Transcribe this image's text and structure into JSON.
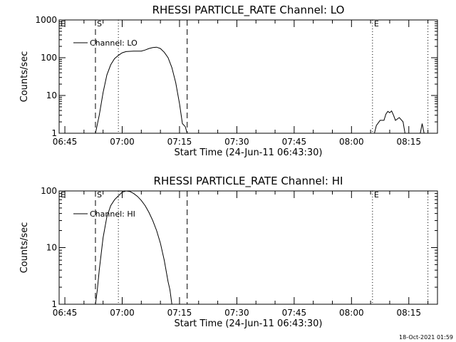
{
  "chart_data": [
    {
      "type": "line",
      "title": "RHESSI PARTICLE_RATE Channel: LO",
      "xlabel": "Start Time (24-Jun-11 06:43:30)",
      "ylabel": "Counts/sec",
      "y_scale": "log",
      "ylim": [
        1,
        1000
      ],
      "y_ticks": [
        {
          "value": 1,
          "label": "1"
        },
        {
          "value": 10,
          "label": "10"
        },
        {
          "value": 100,
          "label": "100"
        },
        {
          "value": 1000,
          "label": "1000"
        }
      ],
      "xlim": [
        "06:43:30",
        "08:22:30"
      ],
      "x_ticks": [
        "06:45",
        "07:00",
        "07:15",
        "07:30",
        "07:45",
        "08:00",
        "08:15"
      ],
      "legend": {
        "label": "Channel: LO",
        "placement": "top-left"
      },
      "markers": [
        {
          "label": "E",
          "time": "06:43:30",
          "style": "none"
        },
        {
          "label": "S",
          "time": "06:53:00",
          "style": "dashed"
        },
        {
          "label": "",
          "time": "06:59:00",
          "style": "dotted"
        },
        {
          "label": "",
          "time": "07:17:00",
          "style": "dashed"
        },
        {
          "label": "E",
          "time": "08:05:30",
          "style": "dotted"
        },
        {
          "label": "",
          "time": "08:20:00",
          "style": "dotted"
        }
      ],
      "series": [
        {
          "segments": [
            [
              [
                "06:53:00",
                1
              ],
              [
                "06:54:00",
                3
              ],
              [
                "06:55:00",
                12
              ],
              [
                "06:56:00",
                35
              ],
              [
                "06:57:00",
                65
              ],
              [
                "06:58:00",
                95
              ],
              [
                "06:59:00",
                115
              ],
              [
                "07:00:00",
                135
              ],
              [
                "07:01:00",
                145
              ],
              [
                "07:03:00",
                150
              ],
              [
                "07:05:00",
                150
              ],
              [
                "07:06:00",
                160
              ],
              [
                "07:07:00",
                175
              ],
              [
                "07:08:00",
                185
              ],
              [
                "07:09:00",
                190
              ],
              [
                "07:10:00",
                175
              ],
              [
                "07:11:00",
                140
              ],
              [
                "07:12:00",
                100
              ],
              [
                "07:13:00",
                55
              ],
              [
                "07:14:00",
                22
              ],
              [
                "07:15:00",
                6
              ],
              [
                "07:15:45",
                1.8
              ],
              [
                "07:16:30",
                1.5
              ],
              [
                "07:17:00",
                1
              ]
            ],
            [
              [
                "08:06:00",
                1
              ],
              [
                "08:06:30",
                1.6
              ],
              [
                "08:07:30",
                2.2
              ],
              [
                "08:08:30",
                2.2
              ],
              [
                "08:09:00",
                3.2
              ],
              [
                "08:09:30",
                3.8
              ],
              [
                "08:10:00",
                3.5
              ],
              [
                "08:10:30",
                3.9
              ],
              [
                "08:11:00",
                3.0
              ],
              [
                "08:11:30",
                2.2
              ],
              [
                "08:12:30",
                2.6
              ],
              [
                "08:13:30",
                2.0
              ],
              [
                "08:14:00",
                1
              ]
            ],
            [
              [
                "08:18:00",
                1
              ],
              [
                "08:18:30",
                1.8
              ],
              [
                "08:19:00",
                1
              ]
            ]
          ]
        }
      ]
    },
    {
      "type": "line",
      "title": "RHESSI PARTICLE_RATE Channel: HI",
      "xlabel": "Start Time (24-Jun-11 06:43:30)",
      "ylabel": "Counts/sec",
      "y_scale": "log",
      "ylim": [
        1,
        100
      ],
      "y_ticks": [
        {
          "value": 1,
          "label": "1"
        },
        {
          "value": 10,
          "label": "10"
        },
        {
          "value": 100,
          "label": "100"
        }
      ],
      "xlim": [
        "06:43:30",
        "08:22:30"
      ],
      "x_ticks": [
        "06:45",
        "07:00",
        "07:15",
        "07:30",
        "07:45",
        "08:00",
        "08:15"
      ],
      "legend": {
        "label": "Channel: HI",
        "placement": "top-left"
      },
      "markers": [
        {
          "label": "E",
          "time": "06:43:30",
          "style": "none"
        },
        {
          "label": "S",
          "time": "06:53:00",
          "style": "dashed"
        },
        {
          "label": "",
          "time": "06:59:00",
          "style": "dotted"
        },
        {
          "label": "",
          "time": "07:17:00",
          "style": "dashed"
        },
        {
          "label": "E",
          "time": "08:05:30",
          "style": "dotted"
        },
        {
          "label": "",
          "time": "08:20:00",
          "style": "dotted"
        }
      ],
      "series": [
        {
          "segments": [
            [
              [
                "06:53:00",
                1
              ],
              [
                "06:53:30",
                1.8
              ],
              [
                "06:54:00",
                4
              ],
              [
                "06:55:00",
                15
              ],
              [
                "06:56:00",
                35
              ],
              [
                "06:57:00",
                55
              ],
              [
                "06:58:00",
                70
              ],
              [
                "06:59:00",
                82
              ],
              [
                "07:00:00",
                95
              ],
              [
                "07:01:00",
                100
              ],
              [
                "07:02:00",
                98
              ],
              [
                "07:03:00",
                90
              ],
              [
                "07:04:00",
                80
              ],
              [
                "07:05:00",
                68
              ],
              [
                "07:06:00",
                55
              ],
              [
                "07:07:00",
                42
              ],
              [
                "07:08:00",
                30
              ],
              [
                "07:09:00",
                20
              ],
              [
                "07:10:00",
                12
              ],
              [
                "07:11:00",
                6
              ],
              [
                "07:12:00",
                2.5
              ],
              [
                "07:12:30",
                1.8
              ],
              [
                "07:13:00",
                1
              ]
            ]
          ]
        }
      ]
    }
  ],
  "footer": {
    "timestamp": "18-Oct-2021 01:59"
  }
}
